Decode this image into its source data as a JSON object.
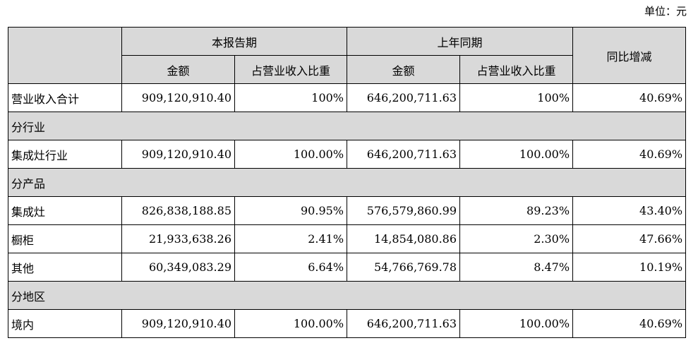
{
  "unit_label": "单位：元",
  "header": {
    "current_period": "本报告期",
    "prior_period": "上年同期",
    "yoy_change": "同比增减",
    "amount": "金额",
    "share_of_revenue": "占营业收入比重"
  },
  "rows": [
    {
      "type": "data",
      "label": "营业收入合计",
      "cur_amount": "909,120,910.40",
      "cur_share": "100%",
      "prev_amount": "646,200,711.63",
      "prev_share": "100%",
      "yoy": "40.69%"
    },
    {
      "type": "group",
      "label": "分行业"
    },
    {
      "type": "data",
      "label": "集成灶行业",
      "cur_amount": "909,120,910.40",
      "cur_share": "100.00%",
      "prev_amount": "646,200,711.63",
      "prev_share": "100.00%",
      "yoy": "40.69%"
    },
    {
      "type": "group",
      "label": "分产品"
    },
    {
      "type": "data",
      "label": "集成灶",
      "cur_amount": "826,838,188.85",
      "cur_share": "90.95%",
      "prev_amount": "576,579,860.99",
      "prev_share": "89.23%",
      "yoy": "43.40%"
    },
    {
      "type": "data",
      "label": "橱柜",
      "cur_amount": "21,933,638.26",
      "cur_share": "2.41%",
      "prev_amount": "14,854,080.86",
      "prev_share": "2.30%",
      "yoy": "47.66%"
    },
    {
      "type": "data",
      "label": "其他",
      "cur_amount": "60,349,083.29",
      "cur_share": "6.64%",
      "prev_amount": "54,766,769.78",
      "prev_share": "8.47%",
      "yoy": "10.19%"
    },
    {
      "type": "group",
      "label": "分地区"
    },
    {
      "type": "data",
      "label": "境内",
      "cur_amount": "909,120,910.40",
      "cur_share": "100.00%",
      "prev_amount": "646,200,711.63",
      "prev_share": "100.00%",
      "yoy": "40.69%"
    }
  ]
}
